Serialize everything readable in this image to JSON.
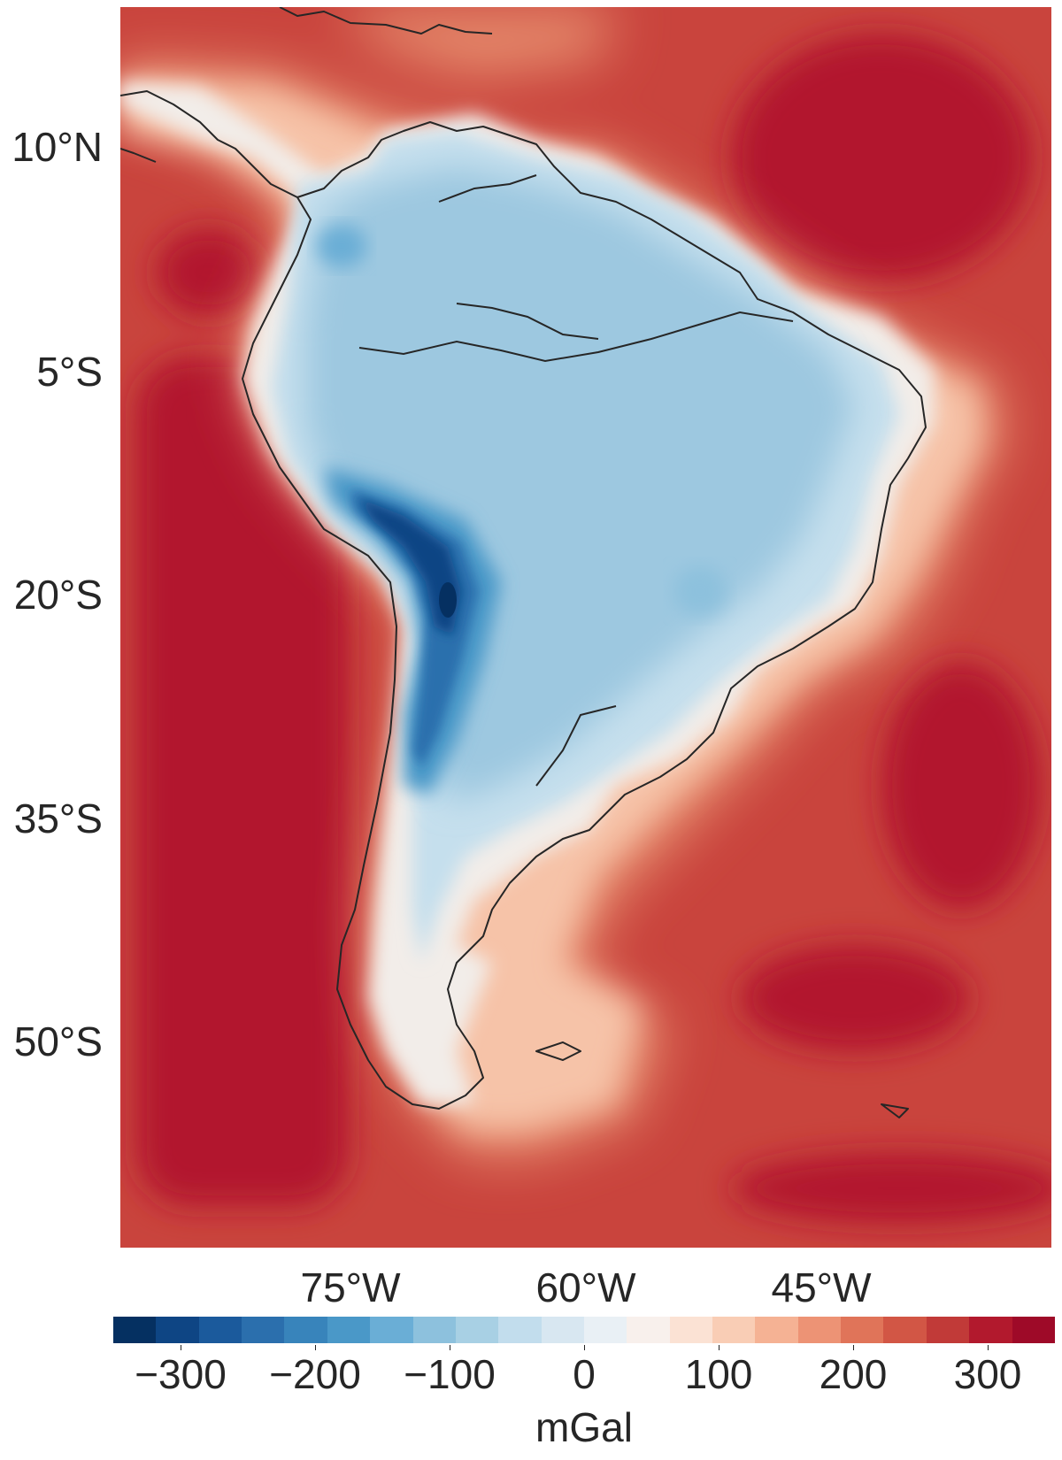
{
  "map": {
    "latitude_labels": [
      "10°N",
      "5°S",
      "20°S",
      "35°S",
      "50°S"
    ],
    "longitude_labels": [
      "75°W",
      "60°W",
      "45°W"
    ],
    "colorbar": {
      "label": "mGal",
      "tick_labels": [
        "−300",
        "−200",
        "−100",
        "0",
        "100",
        "200",
        "300"
      ],
      "range": [
        -350,
        350
      ],
      "colors": [
        "#053061",
        "#0e4584",
        "#1b5a9c",
        "#2b6fad",
        "#3884bb",
        "#4a98c8",
        "#6aaed6",
        "#8dc1dd",
        "#a8d0e4",
        "#c2dded",
        "#d8e7f1",
        "#e9f0f5",
        "#f8f0ec",
        "#fbe2d4",
        "#f9cdb5",
        "#f5b294",
        "#ed9375",
        "#e07459",
        "#d25645",
        "#c13a38",
        "#b2192d",
        "#9e0a28"
      ],
      "colormap": "RdBu_r (diverging blue-white-red)"
    },
    "region_values": {
      "deep_ocean": 300,
      "shelf_and_coast": 150,
      "amazon_lowlands": -100,
      "andes_central_peak": -350
    },
    "colors": {
      "ocean": "#b2192d",
      "land_interior": "#9dc8e0",
      "andes_low": "#08468a",
      "coastline": "#262626"
    }
  }
}
